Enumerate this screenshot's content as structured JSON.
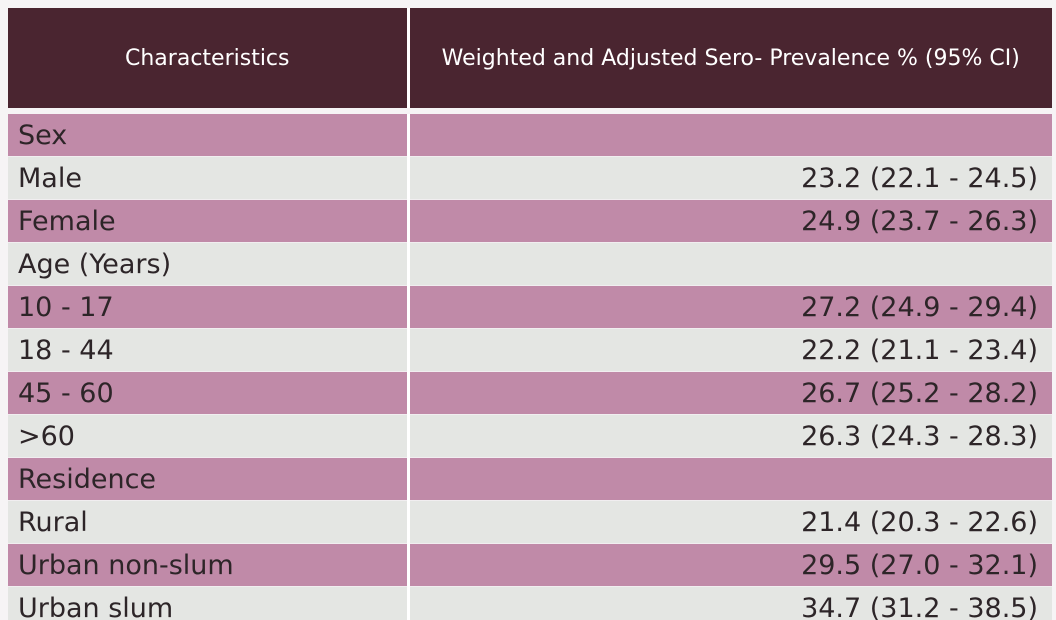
{
  "table": {
    "headers": {
      "characteristics": "Characteristics",
      "prevalence": "Weighted and Adjusted Sero- Prevalence % (95% CI)"
    },
    "rows": [
      {
        "label": "Sex",
        "value": "",
        "group": true
      },
      {
        "label": "Male",
        "value": "23.2 (22.1 - 24.5)",
        "group": false
      },
      {
        "label": "Female",
        "value": "24.9 (23.7 - 26.3)",
        "group": false
      },
      {
        "label": "Age (Years)",
        "value": "",
        "group": true
      },
      {
        "label": "10 - 17",
        "value": "27.2 (24.9 - 29.4)",
        "group": false
      },
      {
        "label": "18 - 44",
        "value": "22.2 (21.1 - 23.4)",
        "group": false
      },
      {
        "label": "45 - 60",
        "value": "26.7 (25.2 - 28.2)",
        "group": false
      },
      {
        "label": ">60",
        "value": "26.3 (24.3 - 28.3)",
        "group": false
      },
      {
        "label": "Residence",
        "value": "",
        "group": true
      },
      {
        "label": "Rural",
        "value": "21.4 (20.3 - 22.6)",
        "group": false
      },
      {
        "label": "Urban non-slum",
        "value": "29.5 (27.0 - 32.1)",
        "group": false
      },
      {
        "label": "Urban slum",
        "value": "34.7 (31.2 - 38.5)",
        "group": false
      }
    ]
  },
  "colors": {
    "header_bg": "#4a2530",
    "row_pink": "#c08aa8",
    "row_light": "#e4e6e3"
  }
}
